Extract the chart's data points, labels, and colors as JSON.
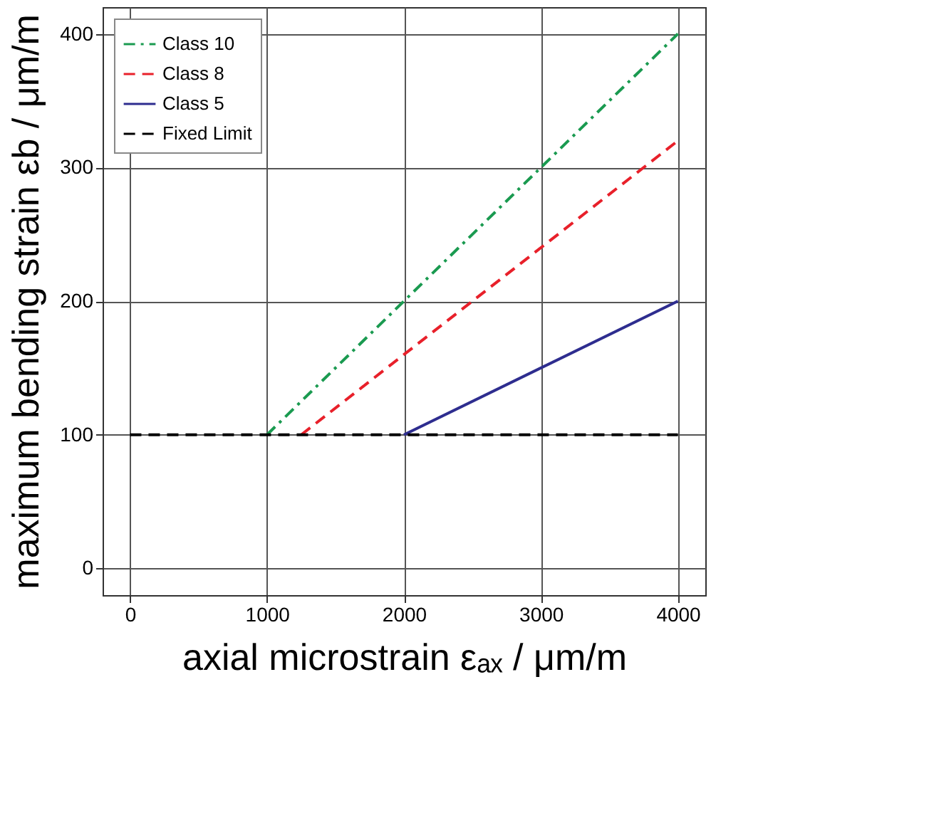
{
  "chart_data": {
    "type": "line",
    "xlabel": "axial microstrain εₐₓ / μm/m",
    "ylabel": "maximum bending strain εb / μm/m",
    "series": [
      {
        "name": "Class 10",
        "color": "#1a9a50",
        "line_style": "dashdot",
        "x": [
          1000,
          4000
        ],
        "values": [
          100,
          400
        ]
      },
      {
        "name": "Class 8",
        "color": "#e8202a",
        "line_style": "dashed",
        "x": [
          1250,
          4000
        ],
        "values": [
          100,
          320
        ]
      },
      {
        "name": "Class 5",
        "color": "#2e2d8f",
        "line_style": "solid",
        "x": [
          2000,
          4000
        ],
        "values": [
          100,
          200
        ]
      },
      {
        "name": "Fixed Limit",
        "color": "#000000",
        "line_style": "dashed",
        "x": [
          0,
          4000
        ],
        "values": [
          100,
          100
        ]
      }
    ],
    "xlim": [
      -200,
      4200
    ],
    "ylim": [
      -20,
      420
    ],
    "xticks": [
      0,
      1000,
      2000,
      3000,
      4000
    ],
    "yticks": [
      0,
      100,
      200,
      300,
      400
    ],
    "grid": true,
    "legend": "top left",
    "marker": "none"
  }
}
